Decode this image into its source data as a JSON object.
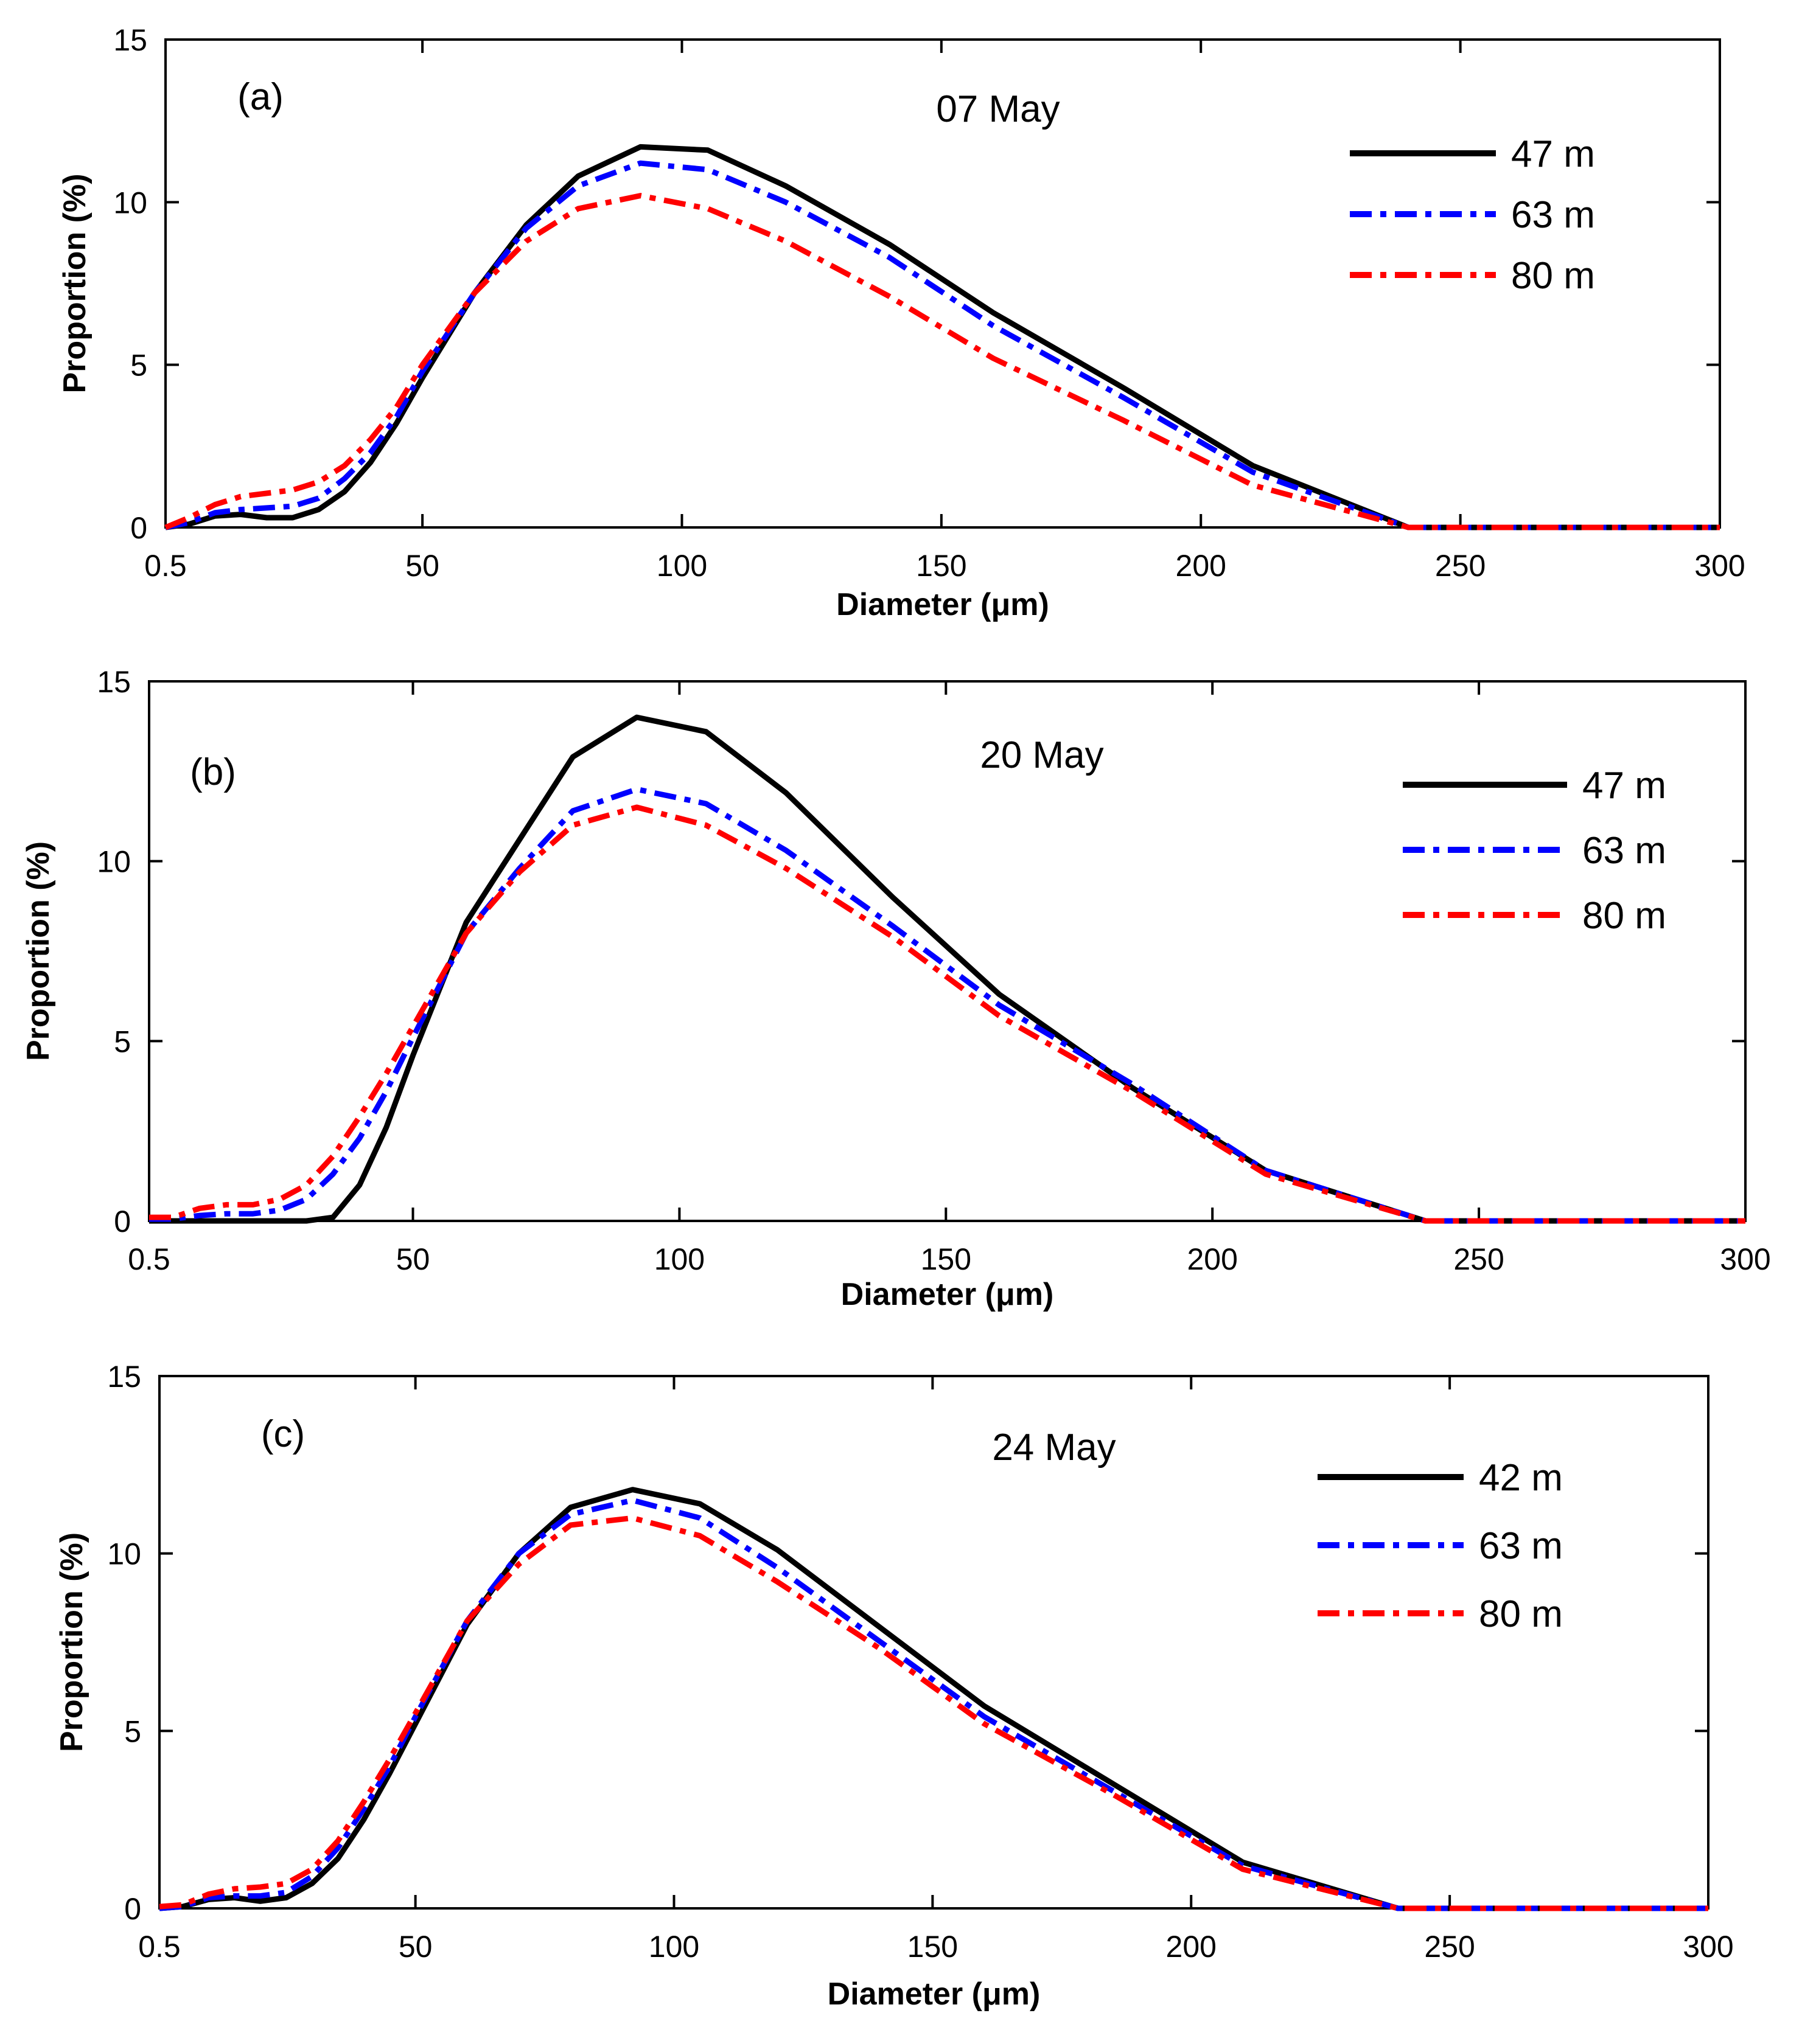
{
  "chart_data": [
    {
      "type": "line",
      "panel_label": "(a)",
      "title": "07 May",
      "xlabel": "Diameter (μm)",
      "ylabel": "Proportion (%)",
      "xlim": [
        0.5,
        300
      ],
      "ylim": [
        0,
        15
      ],
      "xticks": [
        "0.5",
        "50",
        "100",
        "150",
        "200",
        "250",
        "300"
      ],
      "xtick_values": [
        0.5,
        50,
        100,
        150,
        200,
        250,
        300
      ],
      "yticks": [
        "0",
        "5",
        "10",
        "15"
      ],
      "ytick_values": [
        0,
        5,
        10,
        15
      ],
      "legend_position": "top-right",
      "x": [
        0.5,
        5,
        10,
        15,
        20,
        25,
        30,
        35,
        40,
        45,
        50,
        60,
        70,
        80,
        92,
        105,
        120,
        140,
        160,
        185,
        210,
        240,
        260,
        280,
        300
      ],
      "series": [
        {
          "name": "47 m",
          "color": "#000000",
          "style": "solid",
          "values": [
            0,
            0.1,
            0.35,
            0.4,
            0.3,
            0.3,
            0.55,
            1.1,
            2.0,
            3.2,
            4.6,
            7.2,
            9.3,
            10.8,
            11.7,
            11.6,
            10.5,
            8.7,
            6.6,
            4.3,
            1.9,
            0,
            0,
            0,
            0
          ]
        },
        {
          "name": "63 m",
          "color": "#0000ff",
          "style": "dashdot",
          "values": [
            0,
            0.15,
            0.45,
            0.55,
            0.6,
            0.65,
            0.9,
            1.5,
            2.3,
            3.4,
            4.8,
            7.2,
            9.2,
            10.5,
            11.2,
            11.0,
            10.0,
            8.3,
            6.2,
            4.0,
            1.7,
            0,
            0,
            0,
            0
          ]
        },
        {
          "name": "80 m",
          "color": "#ff0000",
          "style": "dashdot",
          "values": [
            0,
            0.3,
            0.7,
            0.95,
            1.05,
            1.15,
            1.4,
            1.9,
            2.7,
            3.7,
            5.0,
            7.2,
            8.8,
            9.8,
            10.2,
            9.8,
            8.8,
            7.1,
            5.2,
            3.3,
            1.3,
            0,
            0,
            0,
            0
          ]
        }
      ]
    },
    {
      "type": "line",
      "panel_label": "(b)",
      "title": "20 May",
      "xlabel": "Diameter (μm)",
      "ylabel": "Proportion (%)",
      "xlim": [
        0.5,
        300
      ],
      "ylim": [
        0,
        15
      ],
      "xticks": [
        "0.5",
        "50",
        "100",
        "150",
        "200",
        "250",
        "300"
      ],
      "xtick_values": [
        0.5,
        50,
        100,
        150,
        200,
        250,
        300
      ],
      "yticks": [
        "0",
        "5",
        "10",
        "15"
      ],
      "ytick_values": [
        0,
        5,
        10,
        15
      ],
      "legend_position": "top-right",
      "x": [
        0.5,
        5,
        10,
        15,
        20,
        25,
        30,
        35,
        40,
        45,
        50,
        60,
        70,
        80,
        92,
        105,
        120,
        140,
        160,
        185,
        210,
        240,
        260,
        280,
        300
      ],
      "series": [
        {
          "name": "47 m",
          "color": "#000000",
          "style": "solid",
          "values": [
            0,
            0,
            0,
            0,
            0,
            0,
            0,
            0.1,
            1.0,
            2.6,
            4.6,
            8.3,
            10.6,
            12.9,
            14.0,
            13.6,
            11.9,
            9.0,
            6.3,
            3.7,
            1.4,
            0,
            0,
            0,
            0
          ]
        },
        {
          "name": "63 m",
          "color": "#0000ff",
          "style": "dashdot",
          "values": [
            0.05,
            0.05,
            0.15,
            0.2,
            0.2,
            0.3,
            0.6,
            1.3,
            2.3,
            3.6,
            5.1,
            8.0,
            9.8,
            11.4,
            12.0,
            11.6,
            10.3,
            8.2,
            6.0,
            3.8,
            1.4,
            0,
            0,
            0,
            0
          ]
        },
        {
          "name": "80 m",
          "color": "#ff0000",
          "style": "dashdot",
          "values": [
            0.1,
            0.1,
            0.35,
            0.45,
            0.45,
            0.6,
            1.0,
            1.8,
            2.9,
            4.1,
            5.4,
            8.0,
            9.7,
            11.0,
            11.5,
            11.0,
            9.8,
            7.9,
            5.7,
            3.6,
            1.3,
            0,
            0,
            0,
            0
          ]
        }
      ]
    },
    {
      "type": "line",
      "panel_label": "(c)",
      "title": "24 May",
      "xlabel": "Diameter (μm)",
      "ylabel": "Proportion (%)",
      "xlim": [
        0.5,
        300
      ],
      "ylim": [
        0,
        15
      ],
      "xticks": [
        "0.5",
        "50",
        "100",
        "150",
        "200",
        "250",
        "300"
      ],
      "xtick_values": [
        0.5,
        50,
        100,
        150,
        200,
        250,
        300
      ],
      "yticks": [
        "0",
        "5",
        "10",
        "15"
      ],
      "ytick_values": [
        0,
        5,
        10,
        15
      ],
      "legend_position": "top-right",
      "x": [
        0.5,
        5,
        10,
        15,
        20,
        25,
        30,
        35,
        40,
        45,
        50,
        60,
        70,
        80,
        92,
        105,
        120,
        140,
        160,
        185,
        210,
        240,
        260,
        280,
        300
      ],
      "series": [
        {
          "name": "42 m",
          "color": "#000000",
          "style": "solid",
          "values": [
            0,
            0.05,
            0.25,
            0.3,
            0.2,
            0.3,
            0.7,
            1.4,
            2.5,
            3.8,
            5.2,
            8.0,
            10.0,
            11.3,
            11.8,
            11.4,
            10.1,
            7.9,
            5.7,
            3.5,
            1.3,
            0,
            0,
            0,
            0
          ]
        },
        {
          "name": "63 m",
          "color": "#0000ff",
          "style": "dashdot",
          "values": [
            0,
            0.05,
            0.3,
            0.35,
            0.35,
            0.45,
            0.9,
            1.7,
            2.8,
            4.0,
            5.4,
            8.1,
            10.0,
            11.1,
            11.5,
            11.0,
            9.6,
            7.5,
            5.4,
            3.3,
            1.2,
            0,
            0,
            0,
            0
          ]
        },
        {
          "name": "80 m",
          "color": "#ff0000",
          "style": "dashdot",
          "values": [
            0.05,
            0.1,
            0.4,
            0.55,
            0.6,
            0.7,
            1.1,
            1.9,
            3.0,
            4.2,
            5.5,
            8.1,
            9.7,
            10.8,
            11.0,
            10.5,
            9.2,
            7.3,
            5.2,
            3.2,
            1.1,
            0,
            0,
            0,
            0
          ]
        }
      ]
    }
  ]
}
